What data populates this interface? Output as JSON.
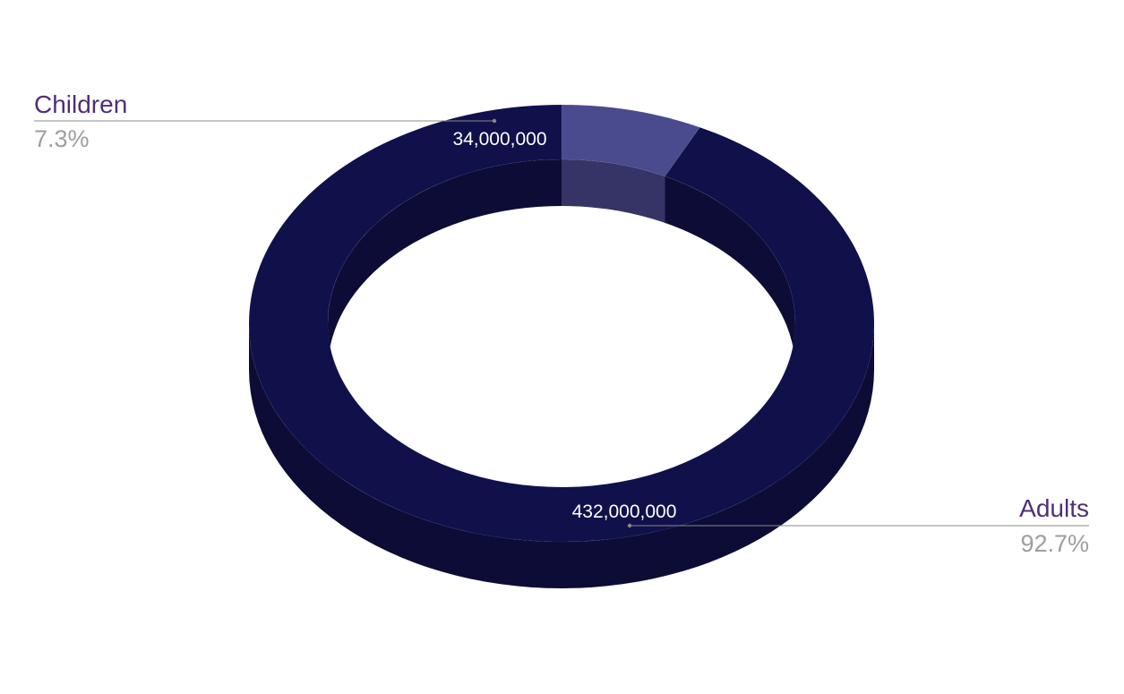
{
  "chart_data": {
    "type": "pie",
    "style": "3d-donut",
    "categories": [
      "Children",
      "Adults"
    ],
    "values": [
      34000000,
      432000000
    ],
    "value_labels": [
      "34,000,000",
      "432,000,000"
    ],
    "percent_labels": [
      "7.3%",
      "92.7%"
    ],
    "colors": {
      "children_top": "#4a4a8e",
      "children_side": "#363467",
      "adults_top": "#10104b",
      "adults_side": "#0d0c36",
      "category_label": "#4e2f78",
      "percent_label": "#9e9e9e",
      "leader_line": "#888888"
    },
    "legend": "none"
  }
}
